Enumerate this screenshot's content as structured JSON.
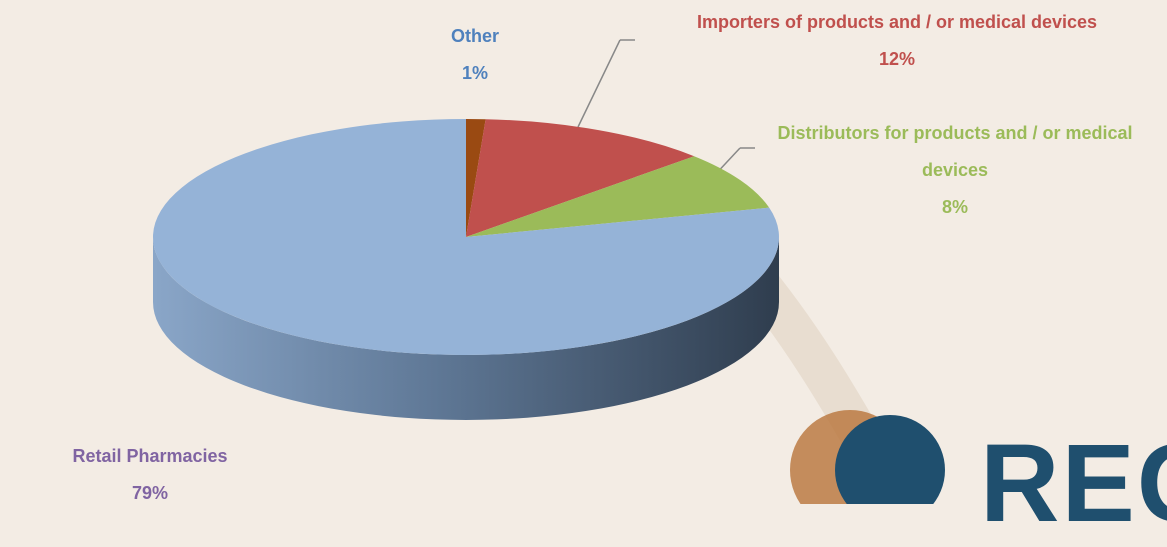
{
  "chart_data": {
    "type": "pie",
    "categories": [
      "Other",
      "Importers of products and / or medical devices",
      "Distributors for products and / or medical devices",
      "Retail Pharmacies"
    ],
    "values": [
      1,
      12,
      8,
      79
    ],
    "value_labels": [
      "1%",
      "12%",
      "8%",
      "79%"
    ],
    "colors": [
      "#9a4a12",
      "#c0504d",
      "#9bbb59",
      "#95b3d7"
    ],
    "label_colors": [
      "#4f81bd",
      "#c0504d",
      "#9bbb59",
      "#8064a2"
    ],
    "logo_text": "REG"
  }
}
